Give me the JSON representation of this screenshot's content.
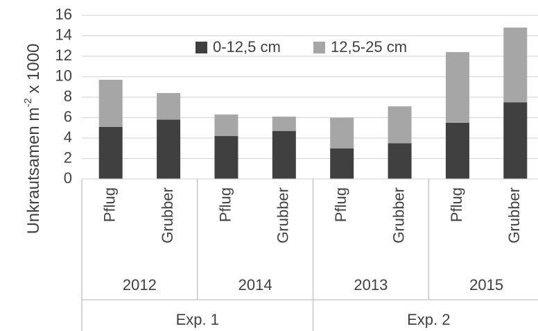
{
  "chart_data": {
    "type": "bar",
    "stacked": true,
    "ylabel": "Unkrautsamen m",
    "ylabel_sup": "-2",
    "ylabel_suffix": " x 1000",
    "ylim": [
      0,
      16
    ],
    "yticks": [
      "0",
      "2",
      "4",
      "6",
      "8",
      "10",
      "12",
      "14",
      "16"
    ],
    "grid": "horizontal",
    "legend_position": "top-center",
    "categories": [
      "Pflug",
      "Grubber",
      "Pflug",
      "Grubber",
      "Pflug",
      "Grubber",
      "Pflug",
      "Grubber"
    ],
    "years": [
      "2012",
      "2014",
      "2013",
      "2015"
    ],
    "experiments": [
      "Exp. 1",
      "Exp. 2"
    ],
    "series": [
      {
        "name": "0-12,5 cm",
        "color": "#404040",
        "values": [
          5.1,
          5.8,
          4.2,
          4.7,
          3.0,
          3.5,
          5.5,
          7.5
        ]
      },
      {
        "name": "12,5-25 cm",
        "color": "#a6a6a6",
        "values": [
          4.6,
          2.6,
          2.1,
          1.4,
          3.0,
          3.6,
          6.9,
          7.3
        ]
      }
    ]
  }
}
